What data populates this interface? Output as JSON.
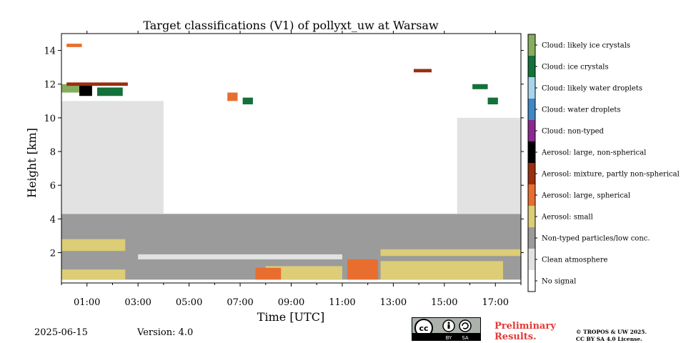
{
  "chart_data": {
    "type": "heatmap",
    "title": "Target classifications (V1) of pollyxt_uw at Warsaw",
    "xlabel": "Time [UTC]",
    "ylabel": "Height [km]",
    "x_ticks": [
      "01:00",
      "03:00",
      "05:00",
      "07:00",
      "09:00",
      "11:00",
      "13:00",
      "15:00",
      "17:00"
    ],
    "x_tick_values_h": [
      1,
      3,
      5,
      7,
      9,
      11,
      13,
      15,
      17
    ],
    "xlim_h": [
      0,
      18
    ],
    "y_ticks": [
      "2",
      "4",
      "6",
      "8",
      "10",
      "12",
      "14"
    ],
    "y_tick_values_km": [
      2,
      4,
      6,
      8,
      10,
      12,
      14
    ],
    "ylim_km": [
      0.2,
      15
    ],
    "classes": [
      {
        "label": "No signal",
        "color": "#ffffff"
      },
      {
        "label": "Clean atmosphere",
        "color": "#e2e2e2"
      },
      {
        "label": "Non-typed particles/low conc.",
        "color": "#9b9b9b"
      },
      {
        "label": "Aerosol: small",
        "color": "#dccd76"
      },
      {
        "label": "Aerosol: large, spherical",
        "color": "#e86e2f"
      },
      {
        "label": "Aerosol: mixture, partly non-spherical",
        "color": "#9a2f10"
      },
      {
        "label": "Aerosol: large, non-spherical",
        "color": "#000000"
      },
      {
        "label": "Cloud: non-typed",
        "color": "#8b2a8e"
      },
      {
        "label": "Cloud: water droplets",
        "color": "#3f88c5"
      },
      {
        "label": "Cloud: likely water droplets",
        "color": "#a9d4ee"
      },
      {
        "label": "Cloud: ice crystals",
        "color": "#13713a"
      },
      {
        "label": "Cloud: likely ice crystals",
        "color": "#86ad5e"
      }
    ],
    "regions": [
      {
        "class": 2,
        "t": [
          0,
          18
        ],
        "h": [
          0.4,
          4.3
        ]
      },
      {
        "class": 3,
        "t": [
          0,
          2.5
        ],
        "h": [
          0.4,
          1.0
        ]
      },
      {
        "class": 3,
        "t": [
          0,
          2.5
        ],
        "h": [
          2.1,
          2.8
        ]
      },
      {
        "class": 3,
        "t": [
          8.0,
          11.0
        ],
        "h": [
          0.4,
          1.2
        ]
      },
      {
        "class": 4,
        "t": [
          7.6,
          8.6
        ],
        "h": [
          0.4,
          1.1
        ]
      },
      {
        "class": 4,
        "t": [
          11.2,
          12.4
        ],
        "h": [
          0.4,
          1.6
        ]
      },
      {
        "class": 3,
        "t": [
          12.5,
          17.3
        ],
        "h": [
          0.4,
          1.5
        ]
      },
      {
        "class": 3,
        "t": [
          12.5,
          18.0
        ],
        "h": [
          1.8,
          2.2
        ]
      },
      {
        "class": 1,
        "t": [
          3.0,
          11.0
        ],
        "h": [
          1.6,
          1.9
        ]
      },
      {
        "class": 1,
        "t": [
          0,
          4.0
        ],
        "h": [
          4.3,
          11.0
        ]
      },
      {
        "class": 1,
        "t": [
          15.5,
          18.0
        ],
        "h": [
          4.3,
          10.0
        ]
      },
      {
        "class": 11,
        "t": [
          0,
          0.7
        ],
        "h": [
          11.5,
          12.0
        ]
      },
      {
        "class": 6,
        "t": [
          0.7,
          1.2
        ],
        "h": [
          11.3,
          12.0
        ]
      },
      {
        "class": 10,
        "t": [
          1.4,
          2.4
        ],
        "h": [
          11.3,
          11.8
        ]
      },
      {
        "class": 5,
        "t": [
          0.2,
          2.6
        ],
        "h": [
          11.9,
          12.1
        ]
      },
      {
        "class": 4,
        "t": [
          0.2,
          0.8
        ],
        "h": [
          14.2,
          14.4
        ]
      },
      {
        "class": 4,
        "t": [
          6.5,
          6.9
        ],
        "h": [
          11.0,
          11.5
        ]
      },
      {
        "class": 10,
        "t": [
          7.1,
          7.5
        ],
        "h": [
          10.8,
          11.2
        ]
      },
      {
        "class": 5,
        "t": [
          13.8,
          14.5
        ],
        "h": [
          12.7,
          12.9
        ]
      },
      {
        "class": 10,
        "t": [
          16.1,
          16.7
        ],
        "h": [
          11.7,
          12.0
        ]
      },
      {
        "class": 10,
        "t": [
          16.7,
          17.1
        ],
        "h": [
          10.8,
          11.2
        ]
      }
    ]
  },
  "footer": {
    "date": "2025-06-15",
    "version": "Version: 4.0",
    "preliminary_line1": "Preliminary",
    "preliminary_line2": "Results.",
    "copyright_line1": "© TROPOS & UW 2025.",
    "copyright_line2": "CC BY SA 4.0 License.",
    "cc_badge_text": {
      "cc": "cc",
      "by": "BY",
      "sa": "SA"
    }
  }
}
